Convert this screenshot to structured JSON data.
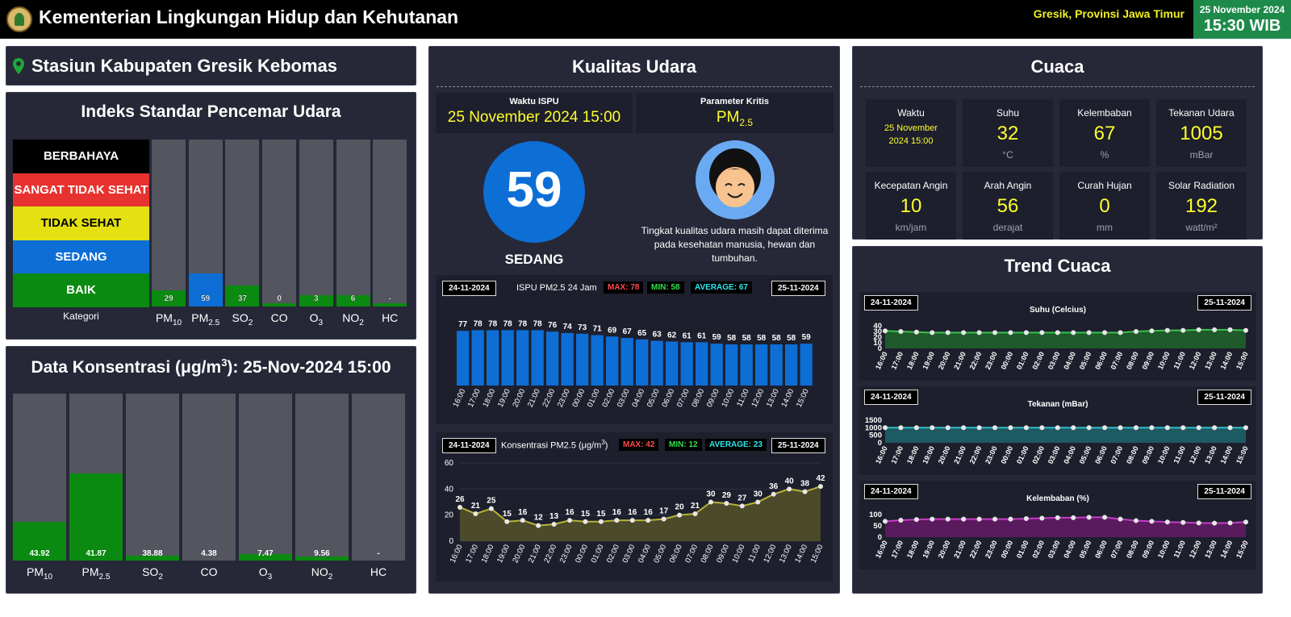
{
  "header": {
    "title": "Kementerian Lingkungan Hidup dan Kehutanan",
    "location": "Gresik, Provinsi Jawa Timur",
    "date": "25 November 2024",
    "time": "15:30 WIB"
  },
  "station": {
    "name": "Stasiun Kabupaten Gresik Kebomas",
    "icon": "location-pin-icon"
  },
  "ispu_index": {
    "title": "Indeks Standar Pencemar Udara",
    "categories": [
      {
        "label": "BERBAHAYA",
        "color": "#000000"
      },
      {
        "label": "SANGAT TIDAK SEHAT",
        "color": "#e8322f"
      },
      {
        "label": "TIDAK SEHAT",
        "color": "#e4e011"
      },
      {
        "label": "SEDANG",
        "color": "#0d6ed6"
      },
      {
        "label": "BAIK",
        "color": "#0a8a10"
      }
    ],
    "category_axis_label": "Kategori",
    "parameters": [
      {
        "label": "PM",
        "sub": "10",
        "value": "29",
        "level": 29,
        "color": "#0a8a10"
      },
      {
        "label": "PM",
        "sub": "2.5",
        "value": "59",
        "level": 59,
        "color": "#0d6ed6"
      },
      {
        "label": "SO",
        "sub": "2",
        "value": "37",
        "level": 37,
        "color": "#0a8a10"
      },
      {
        "label": "CO",
        "sub": "",
        "value": "0",
        "level": 0,
        "color": "#0a8a10"
      },
      {
        "label": "O",
        "sub": "3",
        "value": "3",
        "level": 3,
        "color": "#0a8a10"
      },
      {
        "label": "NO",
        "sub": "2",
        "value": "6",
        "level": 6,
        "color": "#0a8a10"
      },
      {
        "label": "HC",
        "sub": "",
        "value": "-",
        "level": 0,
        "color": "#0a8a10"
      }
    ]
  },
  "konsentrasi": {
    "title_prefix": "Data Konsentrasi (μg/m",
    "title_sup": "3",
    "title_suffix": "): 25-Nov-2024 15:00",
    "items": [
      {
        "label": "PM",
        "sub": "10",
        "value": "43.92",
        "fraction": 0.23
      },
      {
        "label": "PM",
        "sub": "2.5",
        "value": "41.87",
        "fraction": 0.52
      },
      {
        "label": "SO",
        "sub": "2",
        "value": "38.88",
        "fraction": 0.03
      },
      {
        "label": "CO",
        "sub": "",
        "value": "4.38",
        "fraction": 0.0
      },
      {
        "label": "O",
        "sub": "3",
        "value": "7.47",
        "fraction": 0.04
      },
      {
        "label": "NO",
        "sub": "2",
        "value": "9.56",
        "fraction": 0.015
      },
      {
        "label": "HC",
        "sub": "",
        "value": "-",
        "fraction": 0.0
      }
    ]
  },
  "kualitas": {
    "title": "Kualitas Udara",
    "waktu_label": "Waktu ISPU",
    "waktu_value": "25 November 2024 15:00",
    "param_label": "Parameter Kritis",
    "param_value": "PM",
    "param_sub": "2.5",
    "ispu": "59",
    "status": "SEDANG",
    "status_color": "#0d6ed6",
    "face_icon": "smiling-face-icon",
    "description": "Tingkat kualitas udara masih dapat diterima pada kesehatan manusia, hewan dan tumbuhan."
  },
  "ispu_chart": {
    "date_start": "24-11-2024",
    "date_end": "25-11-2024",
    "title": "ISPU PM2.5 24 Jam",
    "max": "MAX: 78",
    "min": "MIN: 58",
    "avg": "AVERAGE: 67",
    "chart_data": {
      "type": "bar",
      "categories": [
        "16:00",
        "17:00",
        "18:00",
        "19:00",
        "20:00",
        "21:00",
        "22:00",
        "23:00",
        "00:00",
        "01:00",
        "02:00",
        "03:00",
        "04:00",
        "05:00",
        "06:00",
        "07:00",
        "08:00",
        "09:00",
        "10:00",
        "11:00",
        "12:00",
        "13:00",
        "14:00",
        "15:00"
      ],
      "values": [
        77,
        78,
        78,
        78,
        78,
        78,
        76,
        74,
        73,
        71,
        69,
        67,
        65,
        63,
        62,
        61,
        61,
        59,
        58,
        58,
        58,
        58,
        58,
        59
      ],
      "color": "#0d6ed6",
      "ylim": [
        0,
        100
      ]
    }
  },
  "konsentrasi_chart": {
    "date_start": "24-11-2024",
    "date_end": "25-11-2024",
    "title": "Konsentrasi PM2.5 (μg/m",
    "title_sup": "3",
    "title_end": ")",
    "max": "MAX: 42",
    "min": "MIN: 12",
    "avg": "AVERAGE: 23",
    "chart_data": {
      "type": "area",
      "categories": [
        "16:00",
        "17:00",
        "18:00",
        "19:00",
        "20:00",
        "21:00",
        "22:00",
        "23:00",
        "00:00",
        "01:00",
        "02:00",
        "03:00",
        "04:00",
        "05:00",
        "06:00",
        "07:00",
        "08:00",
        "09:00",
        "10:00",
        "11:00",
        "12:00",
        "13:00",
        "14:00",
        "15:00"
      ],
      "values": [
        26,
        21,
        25,
        15,
        16,
        12,
        13,
        16,
        15,
        15,
        16,
        16,
        16,
        17,
        20,
        21,
        30,
        29,
        27,
        30,
        36,
        40,
        38,
        42
      ],
      "yticks": [
        "0",
        "20",
        "40",
        "60"
      ],
      "ylim": [
        0,
        60
      ],
      "color": "#b8b23a"
    }
  },
  "cuaca": {
    "title": "Cuaca",
    "cards": [
      {
        "label": "Waktu",
        "value": "25 November 2024 15:00",
        "unit": ""
      },
      {
        "label": "Suhu",
        "value": "32",
        "unit": "°C"
      },
      {
        "label": "Kelembaban",
        "value": "67",
        "unit": "%"
      },
      {
        "label": "Tekanan Udara",
        "value": "1005",
        "unit": "mBar"
      },
      {
        "label": "Kecepatan Angin",
        "value": "10",
        "unit": "km/jam"
      },
      {
        "label": "Arah Angin",
        "value": "56",
        "unit": "derajat"
      },
      {
        "label": "Curah Hujan",
        "value": "0",
        "unit": "mm"
      },
      {
        "label": "Solar Radiation",
        "value": "192",
        "unit": "watt/m²"
      }
    ]
  },
  "trend": {
    "title": "Trend Cuaca",
    "hours": [
      "16:00",
      "17:00",
      "18:00",
      "19:00",
      "20:00",
      "21:00",
      "22:00",
      "23:00",
      "00:00",
      "01:00",
      "02:00",
      "03:00",
      "04:00",
      "05:00",
      "06:00",
      "07:00",
      "08:00",
      "09:00",
      "10:00",
      "11:00",
      "12:00",
      "13:00",
      "14:00",
      "15:00"
    ],
    "charts": [
      {
        "date_start": "24-11-2024",
        "date_end": "25-11-2024",
        "title": "Suhu (Celcius)",
        "yticks": [
          "0",
          "10",
          "20",
          "30",
          "40"
        ],
        "ylim": [
          0,
          40
        ],
        "values": [
          31,
          30,
          29,
          28,
          28,
          28,
          28,
          28,
          28,
          28,
          28,
          28,
          28,
          28,
          28,
          28,
          30,
          31,
          32,
          32,
          33,
          33,
          33,
          32
        ],
        "line": "#39c24a",
        "fill": "#1f5a2a"
      },
      {
        "date_start": "24-11-2024",
        "date_end": "25-11-2024",
        "title": "Tekanan (mBar)",
        "yticks": [
          "0",
          "500",
          "1000",
          "1500"
        ],
        "ylim": [
          0,
          1500
        ],
        "values": [
          1005,
          1005,
          1005,
          1005,
          1005,
          1005,
          1005,
          1005,
          1005,
          1005,
          1005,
          1005,
          1005,
          1005,
          1005,
          1005,
          1005,
          1005,
          1005,
          1005,
          1005,
          1005,
          1005,
          1005
        ],
        "line": "#2fbcc4",
        "fill": "#1e5a63"
      },
      {
        "date_start": "24-11-2024",
        "date_end": "25-11-2024",
        "title": "Kelembaban (%)",
        "yticks": [
          "0",
          "50",
          "100"
        ],
        "ylim": [
          0,
          100
        ],
        "values": [
          70,
          75,
          78,
          80,
          80,
          80,
          80,
          80,
          80,
          82,
          84,
          86,
          86,
          88,
          88,
          80,
          73,
          70,
          67,
          65,
          63,
          62,
          63,
          67
        ],
        "line": "#c63cc6",
        "fill": "#5a1a5e"
      }
    ]
  }
}
